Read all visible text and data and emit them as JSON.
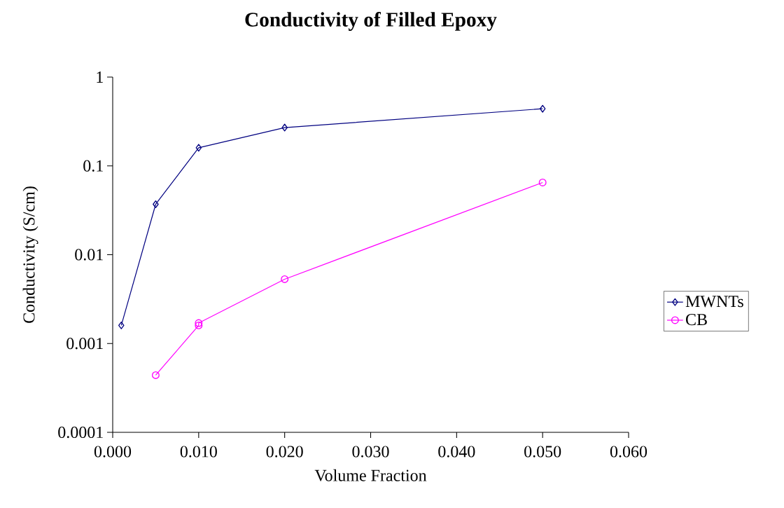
{
  "chart_data": {
    "type": "line",
    "title": "Conductivity of Filled Epoxy",
    "xlabel": "Volume Fraction",
    "ylabel": "Conductivity (S/cm)",
    "series": [
      {
        "name": "MWNTs",
        "color": "#000080",
        "marker": "diamond",
        "x": [
          0.001,
          0.005,
          0.01,
          0.02,
          0.05
        ],
        "values": [
          0.0016,
          0.037,
          0.16,
          0.27,
          0.44
        ]
      },
      {
        "name": "CB",
        "color": "#ff00ff",
        "marker": "circle",
        "x": [
          0.005,
          0.01,
          0.01,
          0.02,
          0.05
        ],
        "values": [
          0.00044,
          0.0016,
          0.0017,
          0.0053,
          0.065
        ]
      }
    ],
    "log": "y",
    "xlim": [
      0,
      0.06
    ],
    "ylim": [
      0.0001,
      1
    ],
    "xticks": [
      {
        "value": 0,
        "label": "0.000"
      },
      {
        "value": 0.01,
        "label": "0.010"
      },
      {
        "value": 0.02,
        "label": "0.020"
      },
      {
        "value": 0.03,
        "label": "0.030"
      },
      {
        "value": 0.04,
        "label": "0.040"
      },
      {
        "value": 0.05,
        "label": "0.050"
      },
      {
        "value": 0.06,
        "label": "0.060"
      }
    ],
    "yticks": [
      0.0001,
      0.001,
      0.01,
      0.1,
      1
    ],
    "grid": false,
    "legend": "right",
    "line_style": "solid"
  }
}
